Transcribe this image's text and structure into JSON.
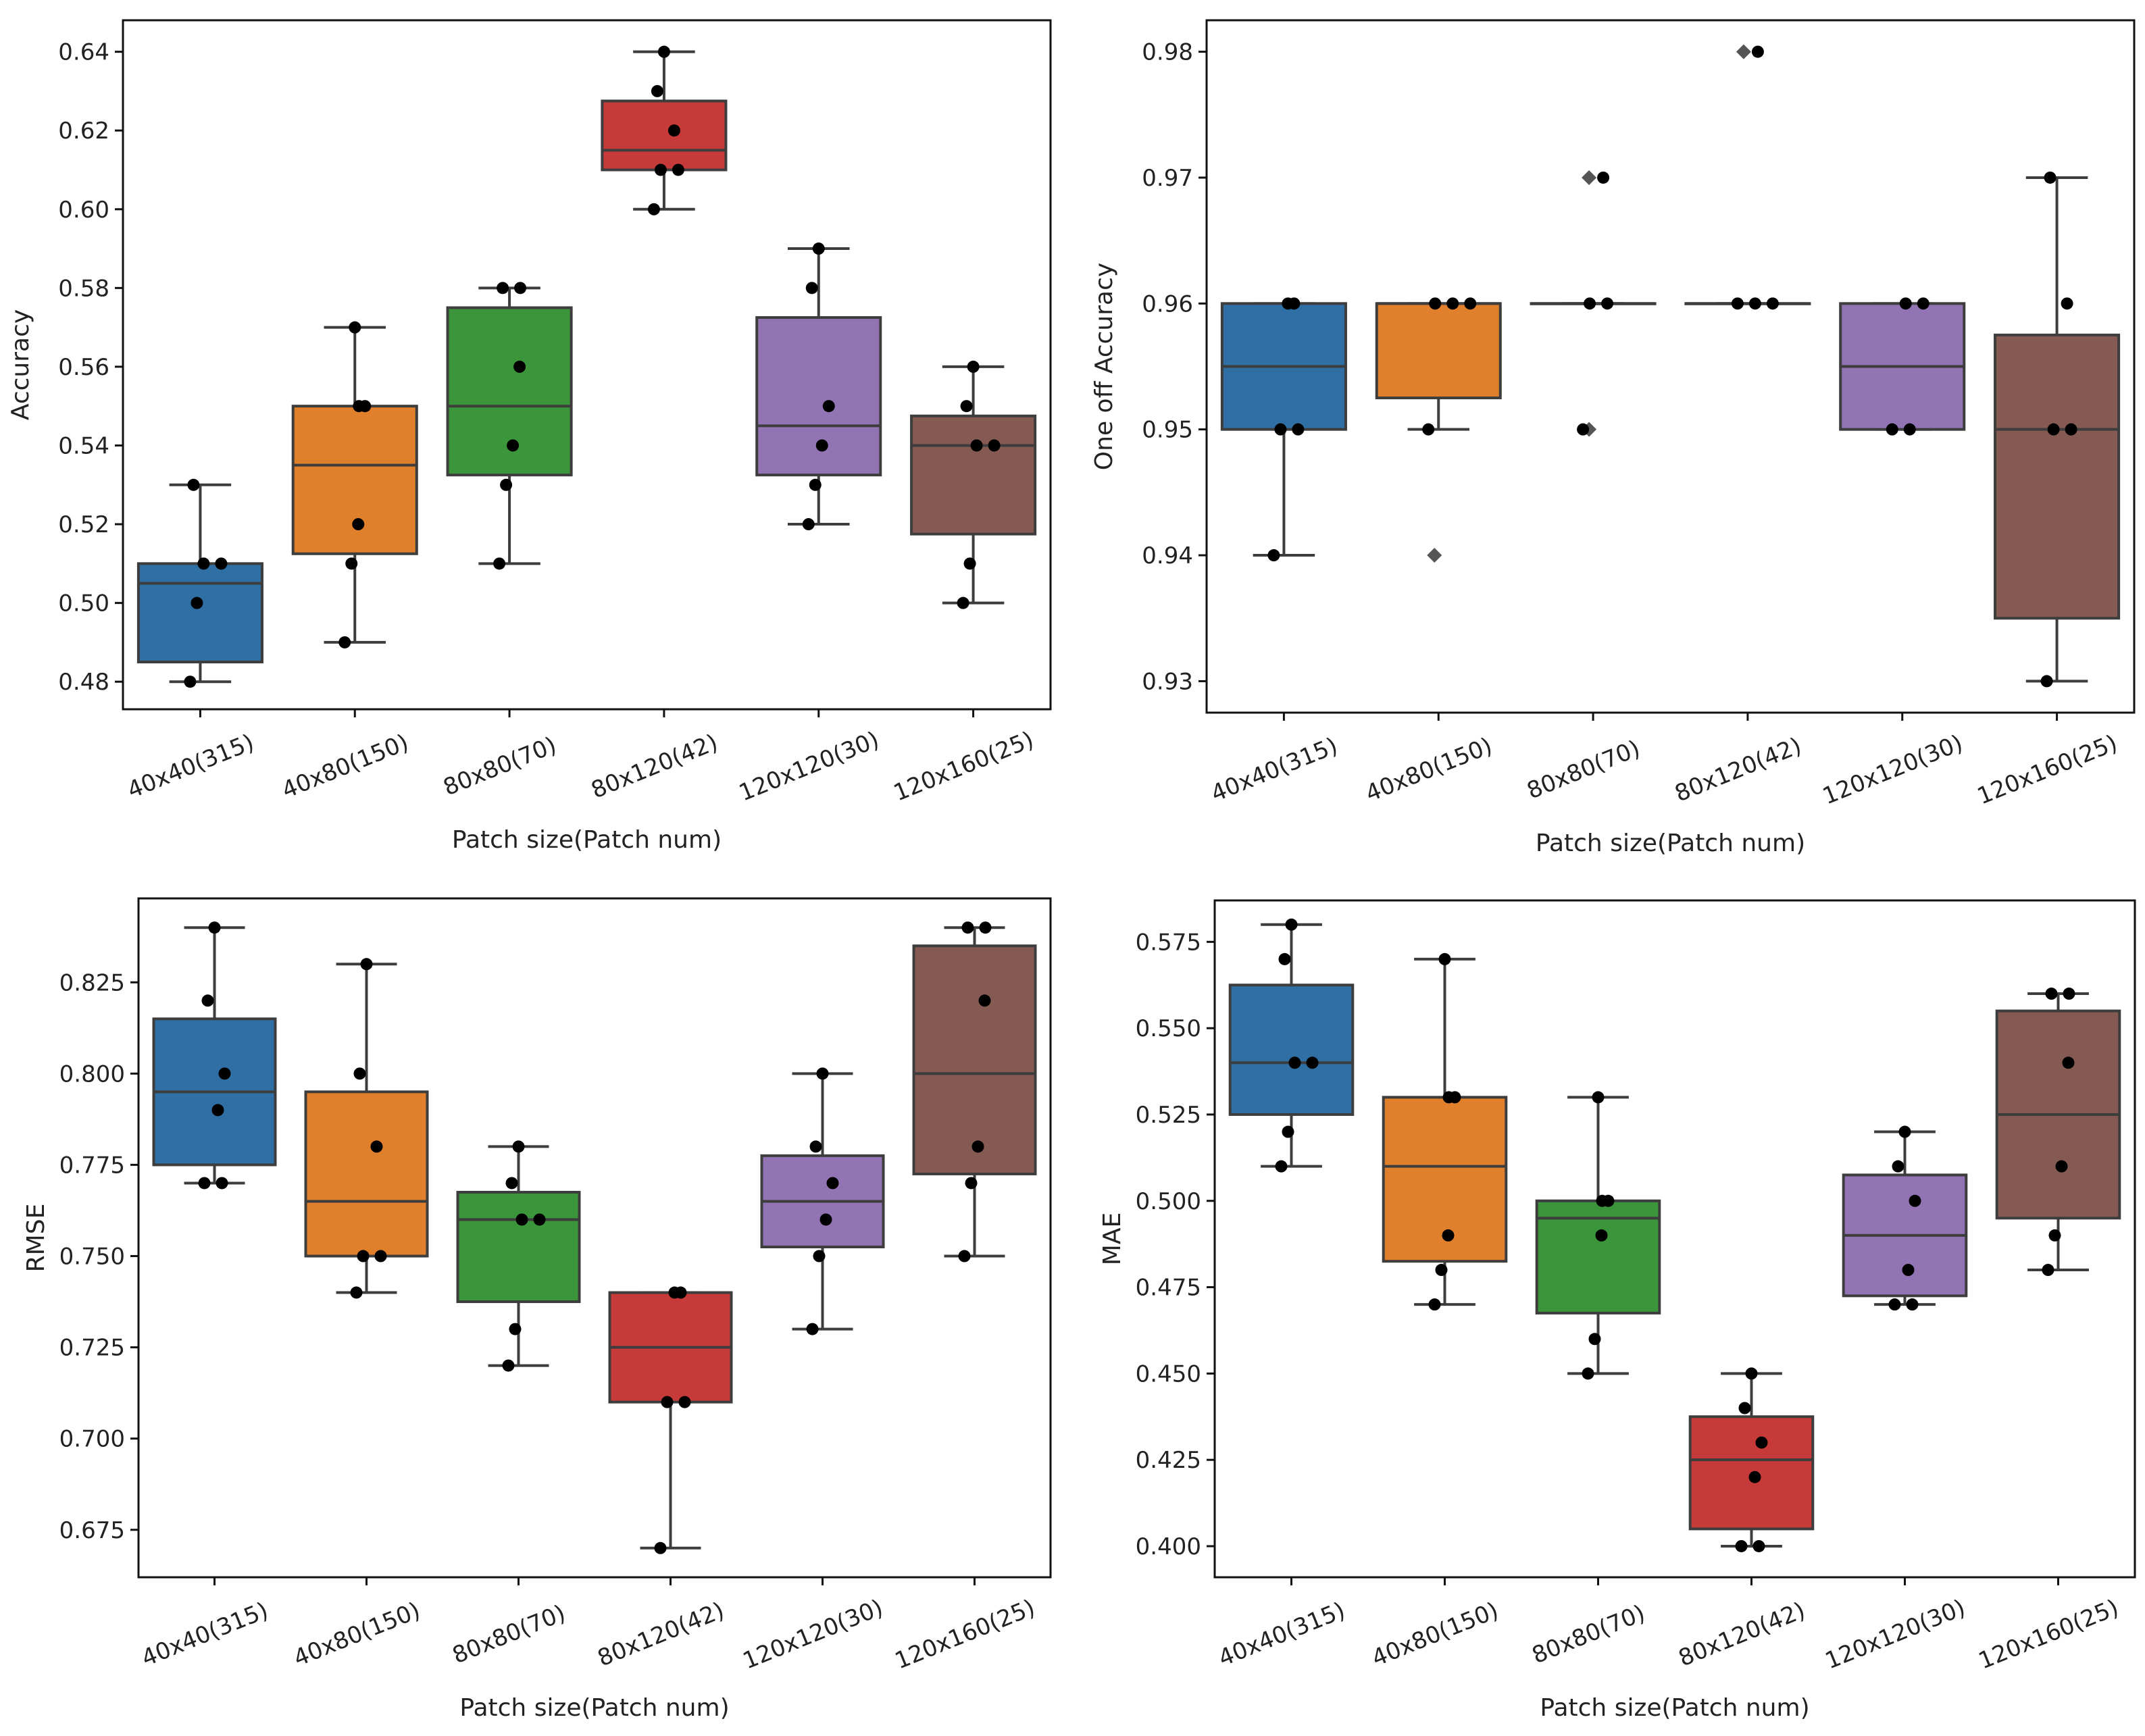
{
  "chart_data": [
    {
      "type": "box",
      "xlabel": "Patch size(Patch num)",
      "ylabel": "Accuracy",
      "categories": [
        "40x40(315)",
        "40x80(150)",
        "80x80(70)",
        "80x120(42)",
        "120x120(30)",
        "120x160(25)"
      ],
      "ylim": [
        0.473,
        0.648
      ],
      "yticks": [
        0.48,
        0.5,
        0.52,
        0.54,
        0.56,
        0.58,
        0.6,
        0.62,
        0.64
      ],
      "ytick_labels": [
        "0.48",
        "0.50",
        "0.52",
        "0.54",
        "0.56",
        "0.58",
        "0.60",
        "0.62",
        "0.64"
      ],
      "series": [
        {
          "name": "40x40(315)",
          "color": "#2f6fa3",
          "whisker_low": 0.48,
          "q1": 0.485,
          "median": 0.505,
          "q3": 0.51,
          "whisker_high": 0.53,
          "points": [
            0.48,
            0.5,
            0.51,
            0.51,
            0.53
          ]
        },
        {
          "name": "40x80(150)",
          "color": "#e07f2c",
          "whisker_low": 0.49,
          "q1": 0.5125,
          "median": 0.535,
          "q3": 0.55,
          "whisker_high": 0.57,
          "points": [
            0.49,
            0.51,
            0.52,
            0.55,
            0.55,
            0.57
          ]
        },
        {
          "name": "80x80(70)",
          "color": "#3b963b",
          "whisker_low": 0.51,
          "q1": 0.5325,
          "median": 0.55,
          "q3": 0.575,
          "whisker_high": 0.58,
          "points": [
            0.51,
            0.53,
            0.54,
            0.56,
            0.58,
            0.58
          ]
        },
        {
          "name": "80x120(42)",
          "color": "#c73a3a",
          "whisker_low": 0.6,
          "q1": 0.61,
          "median": 0.615,
          "q3": 0.6275,
          "whisker_high": 0.64,
          "points": [
            0.6,
            0.61,
            0.61,
            0.62,
            0.63,
            0.64
          ]
        },
        {
          "name": "120x120(30)",
          "color": "#9273b3",
          "whisker_low": 0.52,
          "q1": 0.5325,
          "median": 0.545,
          "q3": 0.5725,
          "whisker_high": 0.59,
          "points": [
            0.52,
            0.53,
            0.54,
            0.55,
            0.58,
            0.59
          ]
        },
        {
          "name": "120x160(25)",
          "color": "#845a52",
          "whisker_low": 0.5,
          "q1": 0.5175,
          "median": 0.54,
          "q3": 0.5475,
          "whisker_high": 0.56,
          "points": [
            0.5,
            0.51,
            0.54,
            0.54,
            0.55,
            0.56
          ]
        }
      ]
    },
    {
      "type": "box",
      "xlabel": "Patch size(Patch num)",
      "ylabel": "One off Accuracy",
      "categories": [
        "40x40(315)",
        "40x80(150)",
        "80x80(70)",
        "80x120(42)",
        "120x120(30)",
        "120x160(25)"
      ],
      "ylim": [
        0.9275,
        0.9825
      ],
      "yticks": [
        0.93,
        0.94,
        0.95,
        0.96,
        0.97,
        0.98
      ],
      "ytick_labels": [
        "0.93",
        "0.94",
        "0.95",
        "0.96",
        "0.97",
        "0.98"
      ],
      "series": [
        {
          "name": "40x40(315)",
          "color": "#2f6fa3",
          "whisker_low": 0.94,
          "q1": 0.95,
          "median": 0.955,
          "q3": 0.96,
          "whisker_high": 0.96,
          "points": [
            0.94,
            0.95,
            0.95,
            0.96,
            0.96
          ]
        },
        {
          "name": "40x80(150)",
          "color": "#e07f2c",
          "whisker_low": 0.95,
          "q1": 0.9525,
          "median": 0.96,
          "q3": 0.96,
          "whisker_high": 0.96,
          "points": [
            0.95,
            0.96,
            0.96,
            0.96
          ],
          "outliers": [
            0.94
          ]
        },
        {
          "name": "80x80(70)",
          "color": "#3b963b",
          "whisker_low": 0.96,
          "q1": 0.96,
          "median": 0.96,
          "q3": 0.96,
          "whisker_high": 0.96,
          "points": [
            0.95,
            0.96,
            0.96,
            0.97
          ],
          "outliers": [
            0.95,
            0.97
          ]
        },
        {
          "name": "80x120(42)",
          "color": "#c73a3a",
          "whisker_low": 0.96,
          "q1": 0.96,
          "median": 0.96,
          "q3": 0.96,
          "whisker_high": 0.96,
          "points": [
            0.96,
            0.96,
            0.96,
            0.98
          ],
          "outliers": [
            0.98
          ]
        },
        {
          "name": "120x120(30)",
          "color": "#9273b3",
          "whisker_low": 0.95,
          "q1": 0.95,
          "median": 0.955,
          "q3": 0.96,
          "whisker_high": 0.96,
          "points": [
            0.95,
            0.95,
            0.96,
            0.96
          ]
        },
        {
          "name": "120x160(25)",
          "color": "#845a52",
          "whisker_low": 0.93,
          "q1": 0.935,
          "median": 0.95,
          "q3": 0.9575,
          "whisker_high": 0.97,
          "points": [
            0.93,
            0.95,
            0.95,
            0.96,
            0.97
          ]
        }
      ]
    },
    {
      "type": "box",
      "xlabel": "Patch size(Patch num)",
      "ylabel": "RMSE",
      "categories": [
        "40x40(315)",
        "40x80(150)",
        "80x80(70)",
        "80x120(42)",
        "120x120(30)",
        "120x160(25)"
      ],
      "ylim": [
        0.662,
        0.848
      ],
      "yticks": [
        0.675,
        0.7,
        0.725,
        0.75,
        0.775,
        0.8,
        0.825
      ],
      "ytick_labels": [
        "0.675",
        "0.700",
        "0.725",
        "0.750",
        "0.775",
        "0.800",
        "0.825"
      ],
      "series": [
        {
          "name": "40x40(315)",
          "color": "#2f6fa3",
          "whisker_low": 0.77,
          "q1": 0.775,
          "median": 0.795,
          "q3": 0.815,
          "whisker_high": 0.84,
          "points": [
            0.77,
            0.77,
            0.79,
            0.8,
            0.82,
            0.84
          ]
        },
        {
          "name": "40x80(150)",
          "color": "#e07f2c",
          "whisker_low": 0.74,
          "q1": 0.75,
          "median": 0.765,
          "q3": 0.795,
          "whisker_high": 0.83,
          "points": [
            0.74,
            0.75,
            0.75,
            0.78,
            0.8,
            0.83
          ]
        },
        {
          "name": "80x80(70)",
          "color": "#3b963b",
          "whisker_low": 0.72,
          "q1": 0.7375,
          "median": 0.76,
          "q3": 0.7675,
          "whisker_high": 0.78,
          "points": [
            0.72,
            0.73,
            0.76,
            0.76,
            0.77,
            0.78
          ]
        },
        {
          "name": "80x120(42)",
          "color": "#c73a3a",
          "whisker_low": 0.67,
          "q1": 0.71,
          "median": 0.725,
          "q3": 0.74,
          "whisker_high": 0.74,
          "points": [
            0.67,
            0.71,
            0.71,
            0.74,
            0.74
          ]
        },
        {
          "name": "120x120(30)",
          "color": "#9273b3",
          "whisker_low": 0.73,
          "q1": 0.7525,
          "median": 0.765,
          "q3": 0.7775,
          "whisker_high": 0.8,
          "points": [
            0.73,
            0.75,
            0.76,
            0.77,
            0.78,
            0.8
          ]
        },
        {
          "name": "120x160(25)",
          "color": "#845a52",
          "whisker_low": 0.75,
          "q1": 0.7725,
          "median": 0.8,
          "q3": 0.835,
          "whisker_high": 0.84,
          "points": [
            0.75,
            0.77,
            0.78,
            0.82,
            0.84,
            0.84
          ]
        }
      ]
    },
    {
      "type": "box",
      "xlabel": "Patch size(Patch num)",
      "ylabel": "MAE",
      "categories": [
        "40x40(315)",
        "40x80(150)",
        "80x80(70)",
        "80x120(42)",
        "120x120(30)",
        "120x160(25)"
      ],
      "ylim": [
        0.391,
        0.587
      ],
      "yticks": [
        0.4,
        0.425,
        0.45,
        0.475,
        0.5,
        0.525,
        0.55,
        0.575
      ],
      "ytick_labels": [
        "0.400",
        "0.425",
        "0.450",
        "0.475",
        "0.500",
        "0.525",
        "0.550",
        "0.575"
      ],
      "series": [
        {
          "name": "40x40(315)",
          "color": "#2f6fa3",
          "whisker_low": 0.51,
          "q1": 0.525,
          "median": 0.54,
          "q3": 0.5625,
          "whisker_high": 0.58,
          "points": [
            0.51,
            0.52,
            0.54,
            0.54,
            0.57,
            0.58
          ]
        },
        {
          "name": "40x80(150)",
          "color": "#e07f2c",
          "whisker_low": 0.47,
          "q1": 0.4825,
          "median": 0.51,
          "q3": 0.53,
          "whisker_high": 0.57,
          "points": [
            0.47,
            0.48,
            0.49,
            0.53,
            0.53,
            0.57
          ]
        },
        {
          "name": "80x80(70)",
          "color": "#3b963b",
          "whisker_low": 0.45,
          "q1": 0.4675,
          "median": 0.495,
          "q3": 0.5,
          "whisker_high": 0.53,
          "points": [
            0.45,
            0.46,
            0.49,
            0.5,
            0.5,
            0.53
          ]
        },
        {
          "name": "80x120(42)",
          "color": "#c73a3a",
          "whisker_low": 0.4,
          "q1": 0.405,
          "median": 0.425,
          "q3": 0.4375,
          "whisker_high": 0.45,
          "points": [
            0.4,
            0.4,
            0.42,
            0.43,
            0.44,
            0.45
          ]
        },
        {
          "name": "120x120(30)",
          "color": "#9273b3",
          "whisker_low": 0.47,
          "q1": 0.4725,
          "median": 0.49,
          "q3": 0.5075,
          "whisker_high": 0.52,
          "points": [
            0.47,
            0.47,
            0.48,
            0.5,
            0.51,
            0.52
          ]
        },
        {
          "name": "120x160(25)",
          "color": "#845a52",
          "whisker_low": 0.48,
          "q1": 0.495,
          "median": 0.525,
          "q3": 0.555,
          "whisker_high": 0.56,
          "points": [
            0.48,
            0.49,
            0.51,
            0.54,
            0.56,
            0.56
          ]
        }
      ]
    }
  ]
}
